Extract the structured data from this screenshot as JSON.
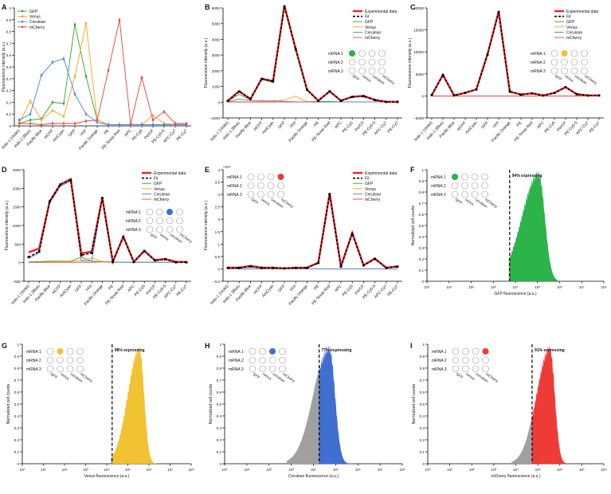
{
  "figure": {
    "channels": [
      "Indo-1 (Violet)",
      "Indo-1 (Blue)",
      "Pacific Blue",
      "mCFP",
      "AmCyan",
      "GFP",
      "YFP",
      "Pacific Orange",
      "PE",
      "PE-Texas Red",
      "APC",
      "PE-Cy5",
      "PerCP",
      "PE-Cy5-5",
      "APC-Cy7",
      "PE-Cy7"
    ],
    "mrna_rows": [
      "mRNA 1",
      "mRNA 2",
      "mRNA 3"
    ],
    "proteins": [
      "GFP",
      "venus",
      "cerulean",
      "mCherry"
    ]
  },
  "colors": {
    "GFP": "#2ca02c",
    "Venus": "#ff9f1a",
    "Cerulean": "#4a7fd8",
    "mCherry": "#e8413a",
    "experimental": "#ff1f1f",
    "fit": "#000000",
    "gray_hist": "#a0a0a0",
    "hist_GFP": "#2cb34a",
    "hist_Venus": "#f1c232",
    "hist_Cerulean": "#3f6fd0",
    "hist_mCherry": "#ef3b36",
    "filled_dot_GFP": "#2cb34a",
    "filled_dot_Venus": "#f1c232",
    "filled_dot_Cerulean": "#3f6fd0",
    "filled_dot_mCherry": "#ef3b36"
  },
  "chart_data": [
    {
      "panel": "A",
      "type": "line",
      "ylabel": "Fluorescence intensity (a.u.)",
      "ylim": [
        0,
        1
      ],
      "yticks": [
        "0",
        "0.1",
        "0.2",
        "0.3",
        "0.4",
        "0.5",
        "0.6",
        "0.7",
        "0.8",
        "0.9",
        "1"
      ],
      "legend": "top-left",
      "series": [
        {
          "name": "GFP",
          "values": [
            0.02,
            0.05,
            0.06,
            0.2,
            0.19,
            0.86,
            0.42,
            0.05,
            0.01,
            0.01,
            0.01,
            0.01,
            0.01,
            0.01,
            0.01,
            0.01
          ]
        },
        {
          "name": "Venus",
          "values": [
            0.02,
            0.21,
            0.05,
            0.13,
            0.08,
            0.42,
            0.87,
            0.05,
            0.01,
            0.01,
            0.01,
            0.01,
            0.09,
            0.02,
            0.01,
            0.01
          ]
        },
        {
          "name": "Cerulean",
          "values": [
            0.05,
            0.1,
            0.43,
            0.54,
            0.57,
            0.27,
            0.1,
            0.03,
            0.01,
            0.01,
            0.01,
            0.01,
            0.01,
            0.01,
            0.01,
            0.01
          ]
        },
        {
          "name": "mCherry",
          "values": [
            0.02,
            0.02,
            0.01,
            0.02,
            0.02,
            0.02,
            0.04,
            0.05,
            0.47,
            0.9,
            0.02,
            0.41,
            0.05,
            0.12,
            0.02,
            0.02
          ]
        }
      ]
    },
    {
      "panel": "B",
      "type": "line",
      "ylabel": "Fluorescence intensity (a.u.)",
      "ylim": [
        -1000,
        6000
      ],
      "yticks": [
        "−1000",
        "0",
        "1000",
        "2000",
        "3000",
        "4000",
        "5000",
        "6000"
      ],
      "legend": "top-right",
      "mrna_filled": [
        {
          "row": 0,
          "col": 0,
          "protein": "GFP"
        }
      ],
      "series": [
        {
          "name": "Experimental data",
          "values": [
            100,
            700,
            200,
            1500,
            1350,
            6150,
            3400,
            800,
            100,
            700,
            100,
            350,
            400,
            150,
            30,
            30
          ]
        },
        {
          "name": "Fit",
          "values": [
            80,
            680,
            210,
            1480,
            1330,
            6100,
            3380,
            790,
            90,
            690,
            90,
            340,
            380,
            140,
            20,
            20
          ]
        },
        {
          "name": "GFP",
          "values": [
            70,
            500,
            150,
            1450,
            1250,
            6050,
            3300,
            820,
            50,
            50,
            20,
            20,
            20,
            20,
            20,
            20
          ]
        },
        {
          "name": "Venus",
          "values": [
            20,
            30,
            20,
            40,
            40,
            150,
            380,
            30,
            20,
            20,
            20,
            20,
            20,
            20,
            20,
            20
          ]
        },
        {
          "name": "Cerulean",
          "values": [
            30,
            200,
            100,
            110,
            100,
            50,
            20,
            20,
            20,
            20,
            20,
            20,
            20,
            20,
            20,
            20
          ]
        },
        {
          "name": "mCherry",
          "values": [
            10,
            10,
            10,
            10,
            10,
            10,
            10,
            20,
            60,
            650,
            70,
            330,
            350,
            120,
            20,
            20
          ]
        }
      ]
    },
    {
      "panel": "C",
      "type": "line",
      "ylabel": "Fluorescence intensity (a.u.)",
      "ylim": [
        -5000,
        20000
      ],
      "yticks": [
        "−5000",
        "0",
        "5000",
        "10000",
        "15000",
        "20000"
      ],
      "legend": "top-right",
      "mrna_filled": [
        {
          "row": 0,
          "col": 1,
          "protein": "Venus"
        }
      ],
      "series": [
        {
          "name": "Experimental data",
          "values": [
            200,
            4800,
            100,
            700,
            1500,
            9500,
            19200,
            1000,
            300,
            600,
            100,
            700,
            2000,
            400,
            100,
            100
          ]
        },
        {
          "name": "Fit",
          "values": [
            200,
            4750,
            120,
            700,
            1480,
            9400,
            19100,
            980,
            290,
            580,
            100,
            680,
            1980,
            390,
            100,
            100
          ]
        },
        {
          "name": "GFP",
          "values": [
            0,
            0,
            0,
            0,
            0,
            0,
            0,
            0,
            0,
            0,
            0,
            0,
            0,
            0,
            0,
            0
          ]
        },
        {
          "name": "Venus",
          "values": [
            200,
            4700,
            100,
            700,
            1450,
            9400,
            19000,
            950,
            250,
            500,
            100,
            600,
            1950,
            350,
            100,
            100
          ]
        },
        {
          "name": "Cerulean",
          "values": [
            0,
            0,
            0,
            0,
            0,
            0,
            0,
            0,
            0,
            0,
            0,
            0,
            0,
            0,
            0,
            0
          ]
        },
        {
          "name": "mCherry",
          "values": [
            0,
            0,
            0,
            0,
            0,
            0,
            0,
            0,
            0,
            0,
            0,
            0,
            0,
            0,
            0,
            0
          ]
        }
      ]
    },
    {
      "panel": "D",
      "type": "line",
      "ylabel": "Fluorescence intensity (a.u.)",
      "ylim": [
        -500,
        2500
      ],
      "yticks": [
        "−500",
        "0",
        "500",
        "1000",
        "1500",
        "2000",
        "2500"
      ],
      "legend": "top-right",
      "mrna_filled": [
        {
          "row": 0,
          "col": 2,
          "protein": "Cerulean"
        }
      ],
      "series": [
        {
          "name": "Experimental data",
          "values": [
            280,
            380,
            1650,
            2100,
            2250,
            250,
            300,
            1750,
            30,
            700,
            20,
            320,
            70,
            100,
            20,
            20
          ]
        },
        {
          "name": "Fit",
          "values": [
            150,
            300,
            1650,
            2100,
            2220,
            200,
            260,
            1740,
            20,
            690,
            20,
            310,
            60,
            90,
            10,
            10
          ]
        },
        {
          "name": "GFP",
          "values": [
            20,
            30,
            40,
            40,
            40,
            150,
            40,
            20,
            10,
            10,
            10,
            10,
            10,
            10,
            10,
            10
          ]
        },
        {
          "name": "Venus",
          "values": [
            10,
            10,
            20,
            30,
            30,
            60,
            130,
            30,
            10,
            10,
            10,
            10,
            10,
            10,
            10,
            10
          ]
        },
        {
          "name": "Cerulean",
          "values": [
            120,
            260,
            1600,
            2050,
            2200,
            50,
            50,
            1700,
            20,
            10,
            10,
            10,
            10,
            10,
            10,
            10
          ]
        },
        {
          "name": "mCherry",
          "values": [
            10,
            10,
            10,
            10,
            10,
            10,
            10,
            20,
            20,
            680,
            10,
            300,
            50,
            80,
            10,
            10
          ]
        }
      ]
    },
    {
      "panel": "E",
      "type": "line",
      "ylabel": "Fluorescence intensity (a.u.)",
      "yexponent": "×10⁴",
      "ylim": [
        -0.5,
        4
      ],
      "yticks": [
        "−0.5",
        "0",
        "0.5",
        "1",
        "1.5",
        "2",
        "2.5",
        "3",
        "3.5",
        "4"
      ],
      "legend": "top-right",
      "mrna_filled": [
        {
          "row": 0,
          "col": 3,
          "protein": "mCherry"
        }
      ],
      "series": [
        {
          "name": "Experimental data",
          "values": [
            0.05,
            0.05,
            0.12,
            0.05,
            0.05,
            0.02,
            0.05,
            0.05,
            0.25,
            3.05,
            0.1,
            1.45,
            0.15,
            0.42,
            0.05,
            0.1
          ]
        },
        {
          "name": "Fit",
          "values": [
            0.04,
            0.04,
            0.1,
            0.04,
            0.04,
            0.02,
            0.04,
            0.04,
            0.24,
            3.02,
            0.09,
            1.42,
            0.14,
            0.4,
            0.04,
            0.09
          ]
        },
        {
          "name": "GFP",
          "values": [
            0,
            0,
            0,
            0,
            0,
            0,
            0,
            0,
            0,
            0,
            0,
            0,
            0,
            0,
            0,
            0
          ]
        },
        {
          "name": "Venus",
          "values": [
            0,
            0,
            0,
            0,
            0,
            0,
            0,
            0,
            0,
            0,
            0,
            0,
            0,
            0,
            0,
            0
          ]
        },
        {
          "name": "Cerulean",
          "values": [
            0,
            0,
            0,
            0,
            0,
            0,
            0,
            0,
            0,
            0,
            0,
            0,
            0,
            0,
            0,
            0
          ]
        },
        {
          "name": "mCherry",
          "values": [
            0.03,
            0.03,
            0.08,
            0.03,
            0.03,
            0.02,
            0.03,
            0.03,
            0.22,
            3.0,
            0.08,
            1.4,
            0.12,
            0.38,
            0.03,
            0.08
          ]
        }
      ]
    },
    {
      "panel": "F",
      "type": "area",
      "xlabel": "GFP fluorescence (a.u.)",
      "ylabel": "Normalized cell counts",
      "xscale": "log",
      "xlim": [
        1,
        100000000
      ],
      "xticks": [
        "10⁰",
        "10¹",
        "10²",
        "10³",
        "10⁴",
        "10⁵",
        "10⁶",
        "10⁷",
        "10⁸"
      ],
      "ylim": [
        0,
        1
      ],
      "yticks": [
        "0",
        "0.1",
        "0.2",
        "0.3",
        "0.4",
        "0.5",
        "0.6",
        "0.7",
        "0.8",
        "0.9",
        "1"
      ],
      "threshold": 5500,
      "annotation": "94% expressing",
      "mrna_filled": [
        {
          "row": 0,
          "col": 0,
          "protein": "GFP"
        }
      ],
      "peak_log10": 5.05,
      "lower_sigma": 0.75,
      "upper_sigma": 0.28,
      "gray_start_log10": 3.7
    },
    {
      "panel": "G",
      "type": "area",
      "xlabel": "Venus fluorescence (a.u.)",
      "ylabel": "Normalized cell counts",
      "xscale": "log",
      "xlim": [
        1,
        100000000
      ],
      "xticks": [
        "10⁰",
        "10¹",
        "10²",
        "10³",
        "10⁴",
        "10⁵",
        "10⁶",
        "10⁷",
        "10⁸"
      ],
      "ylim": [
        0,
        1
      ],
      "yticks": [
        "0",
        "0.1",
        "0.2",
        "0.3",
        "0.4",
        "0.5",
        "0.6",
        "0.7",
        "0.8",
        "0.9",
        "1"
      ],
      "threshold": 18000,
      "annotation": "98% expressing",
      "mrna_filled": [
        {
          "row": 0,
          "col": 1,
          "protein": "Venus"
        }
      ],
      "peak_log10": 5.55,
      "lower_sigma": 0.55,
      "upper_sigma": 0.22,
      "gray_start_log10": 4.2
    },
    {
      "panel": "H",
      "type": "area",
      "xlabel": "Cerulean fluorescence (a.u.)",
      "ylabel": "Normalized cell counts",
      "xscale": "log",
      "xlim": [
        1,
        100000000
      ],
      "xticks": [
        "10⁰",
        "10¹",
        "10²",
        "10³",
        "10⁴",
        "10⁵",
        "10⁶",
        "10⁷",
        "10⁸"
      ],
      "ylim": [
        0,
        1
      ],
      "yticks": [
        "0",
        "0.1",
        "0.2",
        "0.3",
        "0.4",
        "0.5",
        "0.6",
        "0.7",
        "0.8",
        "0.9",
        "1"
      ],
      "threshold": 18000,
      "annotation": "77% expressing",
      "mrna_filled": [
        {
          "row": 0,
          "col": 2,
          "protein": "Cerulean"
        }
      ],
      "peak_log10": 4.72,
      "lower_sigma": 0.7,
      "upper_sigma": 0.25,
      "gray_start_log10": 2.8
    },
    {
      "panel": "I",
      "type": "area",
      "xlabel": "mCherry fluorescence (a.u.)",
      "ylabel": "Normalized cell counts",
      "xscale": "log",
      "xlim": [
        1,
        100000000
      ],
      "xticks": [
        "10⁰",
        "10¹",
        "10²",
        "10³",
        "10⁴",
        "10⁵",
        "10⁶",
        "10⁷",
        "10⁸"
      ],
      "ylim": [
        0,
        1
      ],
      "yticks": [
        "0",
        "0.1",
        "0.2",
        "0.3",
        "0.4",
        "0.5",
        "0.6",
        "0.7",
        "0.8",
        "0.9",
        "1"
      ],
      "threshold": 55000,
      "annotation": "91% expressing",
      "mrna_filled": [
        {
          "row": 0,
          "col": 3,
          "protein": "mCherry"
        }
      ],
      "peak_log10": 5.55,
      "lower_sigma": 0.6,
      "upper_sigma": 0.22,
      "gray_start_log10": 3.8
    }
  ]
}
